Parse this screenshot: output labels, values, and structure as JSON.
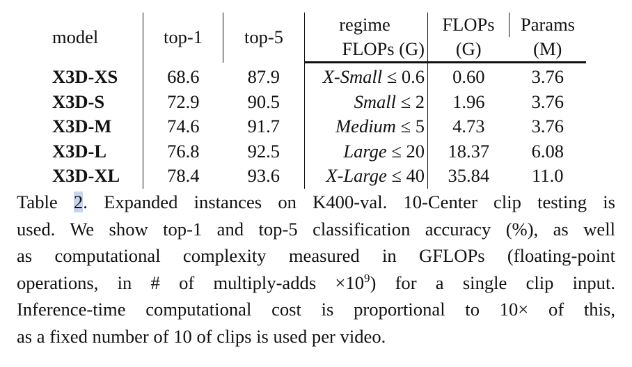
{
  "table": {
    "headers": {
      "model": "model",
      "top1": "top-1",
      "top5": "top-5",
      "regime_line1": "regime",
      "regime_line2": "FLOPs (G)",
      "flops_line1": "FLOPs",
      "flops_line2": "(G)",
      "params_line1": "Params",
      "params_line2": "(M)"
    },
    "rows": [
      {
        "model": "X3D-XS",
        "top1": "68.6",
        "top5": "87.9",
        "regime_name": "X-Small",
        "regime_op": "≤",
        "regime_value": "0.6",
        "flops": "0.60",
        "params": "3.76"
      },
      {
        "model": "X3D-S",
        "top1": "72.9",
        "top5": "90.5",
        "regime_name": "Small",
        "regime_op": "≤",
        "regime_value": "2",
        "flops": "1.96",
        "params": "3.76"
      },
      {
        "model": "X3D-M",
        "top1": "74.6",
        "top5": "91.7",
        "regime_name": "Medium",
        "regime_op": "≤",
        "regime_value": "5",
        "flops": "4.73",
        "params": "3.76"
      },
      {
        "model": "X3D-L",
        "top1": "76.8",
        "top5": "92.5",
        "regime_name": "Large",
        "regime_op": "≤",
        "regime_value": "20",
        "flops": "18.37",
        "params": "6.08"
      },
      {
        "model": "X3D-XL",
        "top1": "78.4",
        "top5": "93.6",
        "regime_name": "X-Large",
        "regime_op": "≤",
        "regime_value": "40",
        "flops": "35.84",
        "params": "11.0"
      }
    ]
  },
  "caption": {
    "prefix": "Table ",
    "number": "2",
    "line1_rest": ". Expanded instances on K400-val. 10-Center clip testing is",
    "line2": "used. We show top-1 and top-5 classification accuracy (%), as well",
    "line3": "as computational complexity measured in GFLOPs (floating-point",
    "line4_a": "operations, in # of multiply-adds ×10",
    "line4_sup": "9",
    "line4_b": ") for a single clip input.",
    "line5": "Inference-time computational cost is proportional to 10× of this,",
    "line6": "as a fixed number of 10 of clips is used per video."
  },
  "colors": {
    "text": "#111111",
    "highlight": "#c9d3ea"
  }
}
